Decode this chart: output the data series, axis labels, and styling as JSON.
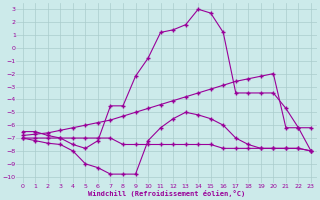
{
  "xlabel": "Windchill (Refroidissement éolien,°C)",
  "bg_color": "#cceaea",
  "grid_color": "#aacccc",
  "line_color": "#990099",
  "xlim": [
    -0.5,
    23.5
  ],
  "ylim": [
    -10.5,
    3.5
  ],
  "xticks": [
    0,
    1,
    2,
    3,
    4,
    5,
    6,
    7,
    8,
    9,
    10,
    11,
    12,
    13,
    14,
    15,
    16,
    17,
    18,
    19,
    20,
    21,
    22,
    23
  ],
  "yticks": [
    3,
    2,
    1,
    0,
    -1,
    -2,
    -3,
    -4,
    -5,
    -6,
    -7,
    -8,
    -9,
    -10
  ],
  "line1_x": [
    0,
    1,
    2,
    3,
    4,
    5,
    6,
    7,
    8,
    9,
    10,
    11,
    12,
    13,
    14,
    15,
    16,
    17,
    18,
    19,
    20,
    21,
    22,
    23
  ],
  "line1_y": [
    -6.5,
    -6.5,
    -6.8,
    -7.0,
    -7.5,
    -7.8,
    -7.2,
    -4.5,
    -4.5,
    -2.2,
    -0.8,
    1.2,
    1.4,
    1.8,
    3.0,
    2.7,
    1.2,
    -3.5,
    -3.5,
    -3.5,
    -3.5,
    -4.7,
    -6.2,
    -8.0
  ],
  "line2_x": [
    0,
    1,
    2,
    3,
    4,
    5,
    6,
    7,
    8,
    9,
    10,
    11,
    12,
    13,
    14,
    15,
    16,
    17,
    18,
    19,
    20,
    21,
    22,
    23
  ],
  "line2_y": [
    -7.0,
    -7.2,
    -7.4,
    -7.5,
    -8.0,
    -9.0,
    -9.3,
    -9.8,
    -9.8,
    -9.8,
    -7.2,
    -6.2,
    -5.5,
    -5.0,
    -5.2,
    -5.5,
    -6.0,
    -7.0,
    -7.5,
    -7.8,
    -7.8,
    -7.8,
    -7.8,
    -8.0
  ],
  "line3_x": [
    0,
    1,
    2,
    3,
    4,
    5,
    6,
    7,
    8,
    9,
    10,
    11,
    12,
    13,
    14,
    15,
    16,
    17,
    18,
    19,
    20,
    21,
    22,
    23
  ],
  "line3_y": [
    -6.8,
    -6.7,
    -6.6,
    -6.4,
    -6.2,
    -6.0,
    -5.8,
    -5.6,
    -5.3,
    -5.0,
    -4.7,
    -4.4,
    -4.1,
    -3.8,
    -3.5,
    -3.2,
    -2.9,
    -2.6,
    -2.4,
    -2.2,
    -2.0,
    -6.2,
    -6.2,
    -6.2
  ],
  "line4_x": [
    0,
    1,
    2,
    3,
    4,
    5,
    6,
    7,
    8,
    9,
    10,
    11,
    12,
    13,
    14,
    15,
    16,
    17,
    18,
    19,
    20,
    21,
    22,
    23
  ],
  "line4_y": [
    -7.0,
    -7.0,
    -7.0,
    -7.0,
    -7.0,
    -7.0,
    -7.0,
    -7.0,
    -7.5,
    -7.5,
    -7.5,
    -7.5,
    -7.5,
    -7.5,
    -7.5,
    -7.5,
    -7.8,
    -7.8,
    -7.8,
    -7.8,
    -7.8,
    -7.8,
    -7.8,
    -8.0
  ]
}
